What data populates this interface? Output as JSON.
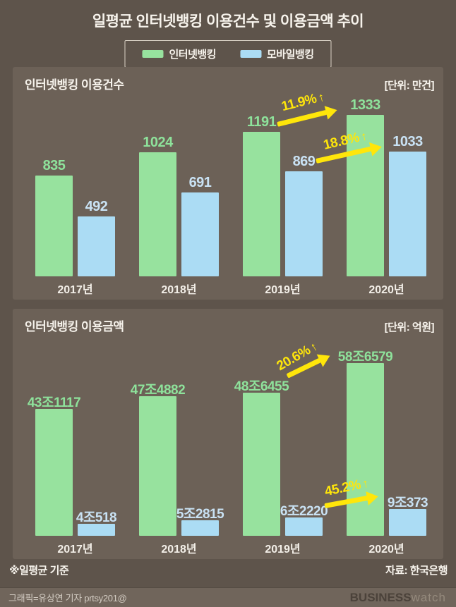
{
  "page": {
    "title": "일평균 인터넷뱅킹 이용건수 및 이용금액 추이",
    "footnote": "※일평균 기준",
    "source": "자료: 한국은행",
    "credit": "그래픽=유상연 기자 prtsy201@",
    "logo": {
      "bold": "BUSINESS",
      "light": "watch"
    }
  },
  "legend": {
    "items": [
      {
        "label": "인터넷뱅킹",
        "color": "#97e29e"
      },
      {
        "label": "모바일뱅킹",
        "color": "#abdcf4"
      }
    ]
  },
  "colors": {
    "background": "#5e544b",
    "panel": "#6c6157",
    "green_bar": "#97e29e",
    "blue_bar": "#abdcf4",
    "green_label": "#8ee29b",
    "blue_label": "#c9e2f4",
    "arrow_yellow": "#ffe60a",
    "white_text": "#f7f3ec"
  },
  "chart_data": [
    {
      "type": "bar",
      "title": "인터넷뱅킹 이용건수",
      "unit_label": "[단위: 만건]",
      "categories": [
        "2017년",
        "2018년",
        "2019년",
        "2020년"
      ],
      "series": [
        {
          "name": "인터넷뱅킹",
          "values": [
            835,
            1024,
            1191,
            1333
          ],
          "labels": [
            "835",
            "1024",
            "1191",
            "1333"
          ],
          "color": "#97e29e",
          "label_color": "#8ee29b"
        },
        {
          "name": "모바일뱅킹",
          "values": [
            492,
            691,
            869,
            1033
          ],
          "labels": [
            "492",
            "691",
            "869",
            "1033"
          ],
          "color": "#abdcf4",
          "label_color": "#c9e2f4"
        }
      ],
      "ylim": [
        0,
        1333
      ],
      "grid": false,
      "annotations": [
        {
          "text": "11.9%",
          "icon": "↑",
          "from": "2019 인터넷뱅킹",
          "to": "2020 인터넷뱅킹"
        },
        {
          "text": "18.8%",
          "icon": "↑",
          "from": "2019 모바일뱅킹",
          "to": "2020 모바일뱅킹"
        }
      ]
    },
    {
      "type": "bar",
      "title": "인터넷뱅킹 이용금액",
      "unit_label": "[단위: 억원]",
      "categories": [
        "2017년",
        "2018년",
        "2019년",
        "2020년"
      ],
      "series": [
        {
          "name": "인터넷뱅킹",
          "values": [
            431117,
            474882,
            486455,
            586579
          ],
          "labels": [
            "43조1117",
            "47조4882",
            "48조6455",
            "58조6579"
          ],
          "color": "#97e29e",
          "label_color": "#8ee29b"
        },
        {
          "name": "모바일뱅킹",
          "values": [
            40518,
            52815,
            62220,
            90373
          ],
          "labels": [
            "4조518",
            "5조2815",
            "6조2220",
            "9조373"
          ],
          "color": "#abdcf4",
          "label_color": "#c9e2f4"
        }
      ],
      "ylim": [
        0,
        586579
      ],
      "grid": false,
      "annotations": [
        {
          "text": "20.6%",
          "icon": "↑",
          "from": "2019 인터넷뱅킹",
          "to": "2020 인터넷뱅킹"
        },
        {
          "text": "45.2%",
          "icon": "↑",
          "from": "2019 모바일뱅킹",
          "to": "2020 모바일뱅킹"
        }
      ]
    }
  ]
}
